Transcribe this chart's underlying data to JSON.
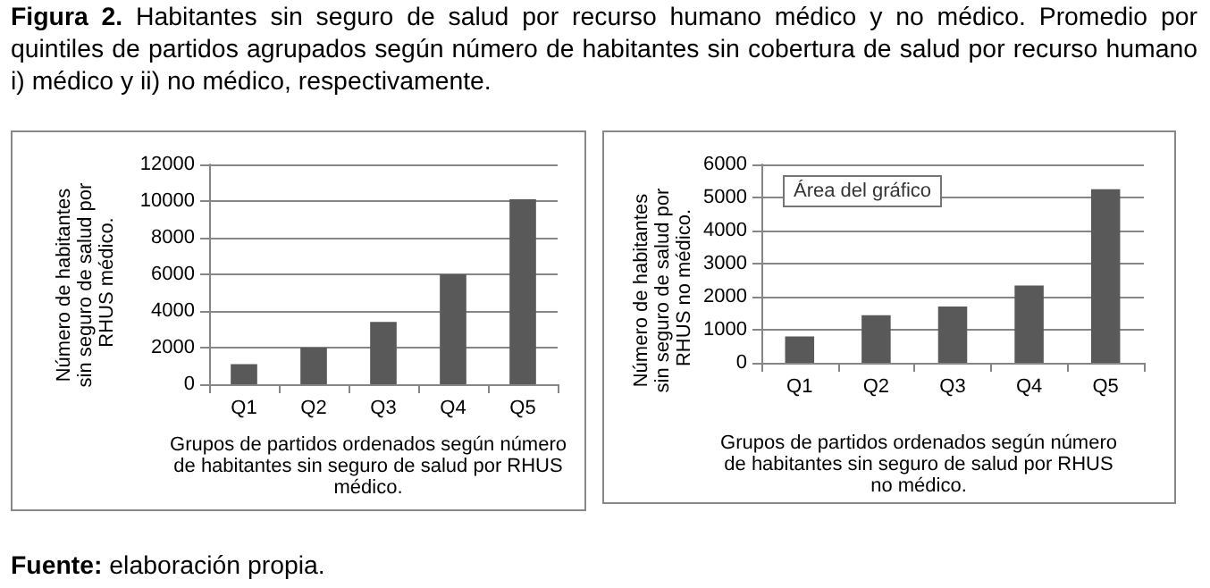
{
  "chart_data": [
    {
      "type": "bar",
      "title": "Figura 2. Habitantes sin seguro de salud por recurso humano médico y no médico. Promedio por quintiles de partidos agrupados según número de habitantes sin cobertura de salud por recurso humano i) médico y ii) no médico, respectivamente.",
      "xlabel": "Grupos de partidos ordenados según número de habitantes sin seguro de salud por RHUS médico.",
      "ylabel": "Número de habitantes sin seguro de salud por RHUS médico.",
      "categories": [
        "Q1",
        "Q2",
        "Q3",
        "Q4",
        "Q5"
      ],
      "values": [
        1100,
        2000,
        3400,
        6000,
        10100
      ],
      "color": "#595959",
      "ylim": [
        0,
        12000
      ],
      "yticks": [
        0,
        2000,
        4000,
        6000,
        8000,
        10000,
        12000
      ],
      "grid": "y"
    },
    {
      "type": "bar",
      "xlabel": "Grupos de partidos ordenados según número de habitantes sin seguro de salud por RHUS no médico.",
      "ylabel": "Número de habitantes sin seguro de salud por RHUS no médico.",
      "categories": [
        "Q1",
        "Q2",
        "Q3",
        "Q4",
        "Q5"
      ],
      "values": [
        800,
        1440,
        1700,
        2340,
        5250
      ],
      "color": "#595959",
      "ylim": [
        0,
        6000
      ],
      "yticks": [
        0,
        1000,
        2000,
        3000,
        4000,
        5000,
        6000
      ],
      "grid": "y",
      "annotations": [
        "Área del gráfico",
        "Fuente: elaboración propia."
      ]
    }
  ]
}
